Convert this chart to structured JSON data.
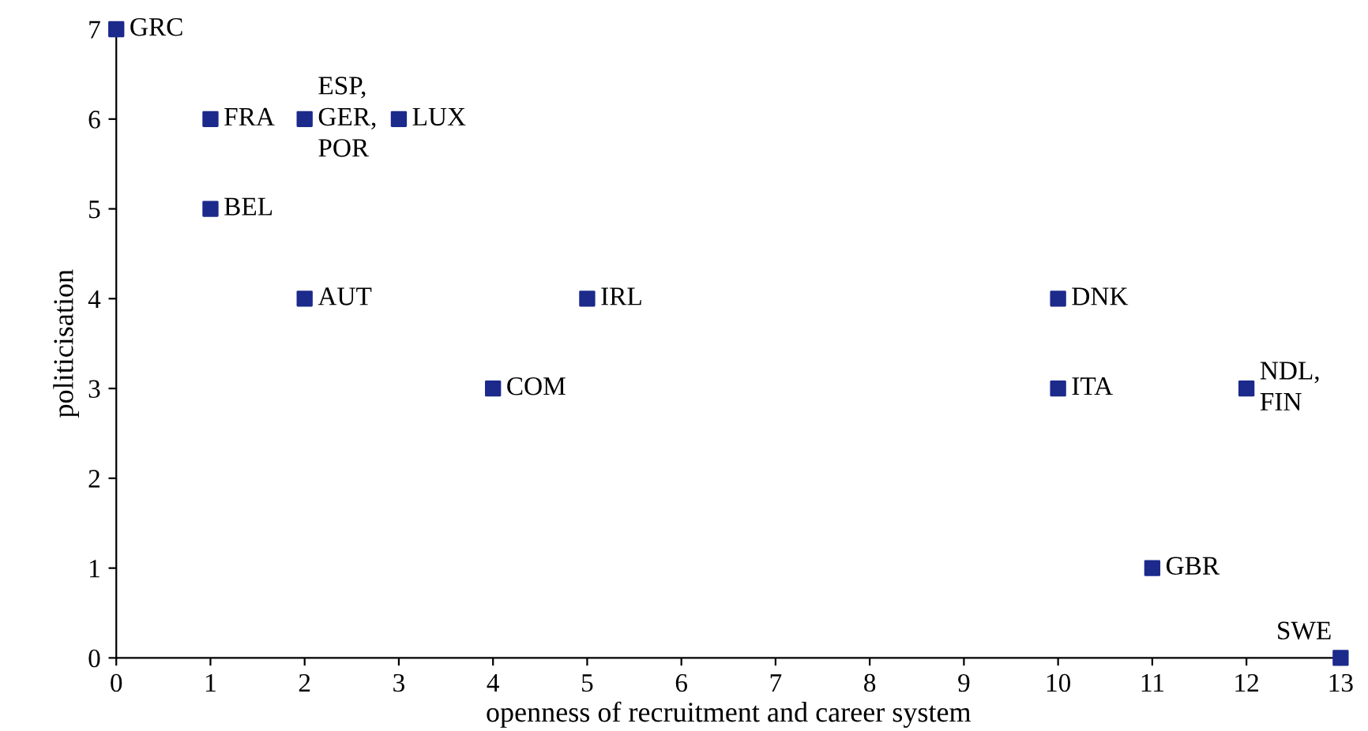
{
  "chart_data": {
    "type": "scatter",
    "xlabel": "openness of recruitment and career system",
    "ylabel": "politicisation",
    "x": [
      0,
      1,
      1,
      2,
      3,
      2,
      4,
      5,
      10,
      10,
      12,
      11,
      13
    ],
    "values": [
      7,
      6,
      5,
      6,
      6,
      4,
      3,
      4,
      4,
      3,
      3,
      1,
      0
    ],
    "color": "#1c2a8c",
    "marker": "square",
    "grid": false,
    "xlim": [
      0,
      13
    ],
    "ylim": [
      0,
      7
    ],
    "xticks": [
      0,
      1,
      2,
      3,
      4,
      5,
      6,
      7,
      8,
      9,
      10,
      11,
      12,
      13
    ],
    "yticks": [
      0,
      1,
      2,
      3,
      4,
      5,
      6,
      7
    ],
    "annotations": [
      {
        "text": "GRC",
        "x": 0,
        "y": 7
      },
      {
        "text": "FRA",
        "x": 1,
        "y": 6
      },
      {
        "text": "BEL",
        "x": 1,
        "y": 5
      },
      {
        "text": "ESP,\nGER,\nPOR",
        "x": 2,
        "y": 6
      },
      {
        "text": "LUX",
        "x": 3,
        "y": 6
      },
      {
        "text": "AUT",
        "x": 2,
        "y": 4
      },
      {
        "text": "COM",
        "x": 4,
        "y": 3
      },
      {
        "text": "IRL",
        "x": 5,
        "y": 4
      },
      {
        "text": "DNK",
        "x": 10,
        "y": 4
      },
      {
        "text": "ITA",
        "x": 10,
        "y": 3
      },
      {
        "text": "NDL,\nFIN",
        "x": 12,
        "y": 3
      },
      {
        "text": "GBR",
        "x": 11,
        "y": 1
      },
      {
        "text": "SWE",
        "x": 13,
        "y": 0
      }
    ]
  }
}
